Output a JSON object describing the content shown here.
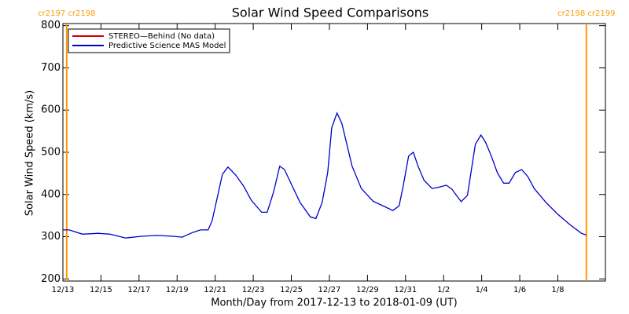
{
  "chart_data": {
    "type": "line",
    "title": "Solar Wind Speed Comparisons",
    "xlabel": "Month/Day from 2017-12-13 to 2018-01-09 (UT)",
    "ylabel": "Solar Wind Speed (km/s)",
    "x": [
      0,
      0.33,
      1.03,
      1.86,
      2.48,
      3.3,
      4.13,
      4.95,
      5.78,
      6.27,
      6.81,
      7.22,
      7.63,
      7.84,
      8.38,
      8.67,
      9.08,
      9.49,
      9.9,
      10.44,
      10.73,
      11.06,
      11.39,
      11.64,
      12.05,
      12.46,
      13.0,
      13.29,
      13.62,
      13.91,
      14.12,
      14.4,
      14.65,
      15.19,
      15.68,
      16.3,
      16.92,
      17.33,
      17.66,
      17.87,
      18.16,
      18.41,
      18.65,
      18.98,
      19.4,
      19.81,
      20.14,
      20.43,
      20.92,
      21.25,
      21.67,
      21.96,
      22.2,
      22.49,
      22.82,
      23.15,
      23.44,
      23.77,
      24.1,
      24.43,
      24.76,
      25.38,
      26.0,
      26.62,
      27.24,
      27.49
    ],
    "series": [
      {
        "name": "STEREO—Behind (No data)",
        "color": "#cc0000",
        "values": [
          null,
          null,
          null,
          null,
          null,
          null,
          null,
          null,
          null,
          null,
          null,
          null,
          null,
          null,
          null,
          null,
          null,
          null,
          null,
          null,
          null,
          null,
          null,
          null,
          null,
          null,
          null,
          null,
          null,
          null,
          null,
          null,
          null,
          null,
          null,
          null,
          null,
          null,
          null,
          null,
          null,
          null,
          null,
          null,
          null,
          null,
          null,
          null,
          null,
          null,
          null,
          null,
          null,
          null,
          null,
          null,
          null,
          null,
          null,
          null,
          null,
          null,
          null,
          null,
          null,
          null
        ]
      },
      {
        "name": "Predictive Science MAS Model",
        "color": "#0000cc",
        "values": [
          316,
          316,
          306,
          308,
          306,
          297,
          301,
          303,
          301,
          299,
          310,
          316,
          316,
          338,
          448,
          465,
          446,
          420,
          386,
          358,
          358,
          405,
          467,
          459,
          420,
          381,
          347,
          343,
          381,
          452,
          558,
          593,
          569,
          467,
          414,
          384,
          371,
          362,
          373,
          418,
          491,
          500,
          468,
          433,
          414,
          418,
          422,
          413,
          383,
          398,
          519,
          541,
          524,
          493,
          452,
          427,
          427,
          452,
          459,
          442,
          414,
          381,
          353,
          329,
          308,
          304
        ]
      }
    ],
    "xlim": [
      0,
      28.5
    ],
    "xticks": [
      {
        "value": 0,
        "label": "12/13"
      },
      {
        "value": 2,
        "label": "12/15"
      },
      {
        "value": 4,
        "label": "12/17"
      },
      {
        "value": 6,
        "label": "12/19"
      },
      {
        "value": 8,
        "label": "12/21"
      },
      {
        "value": 10,
        "label": "12/23"
      },
      {
        "value": 12,
        "label": "12/25"
      },
      {
        "value": 14,
        "label": "12/27"
      },
      {
        "value": 16,
        "label": "12/29"
      },
      {
        "value": 18,
        "label": "12/31"
      },
      {
        "value": 20,
        "label": "1/2"
      },
      {
        "value": 22,
        "label": "1/4"
      },
      {
        "value": 24,
        "label": "1/6"
      },
      {
        "value": 26,
        "label": "1/8"
      }
    ],
    "ylim": [
      195,
      805
    ],
    "yticks": [
      200,
      300,
      400,
      500,
      600,
      700,
      800
    ],
    "annotations": [
      {
        "text": "cr2197 cr2198",
        "x": 0.2
      },
      {
        "text": "cr2198 cr2199",
        "x": 27.5
      }
    ],
    "annotation_color": "#ff9900",
    "legend": "upper left"
  }
}
